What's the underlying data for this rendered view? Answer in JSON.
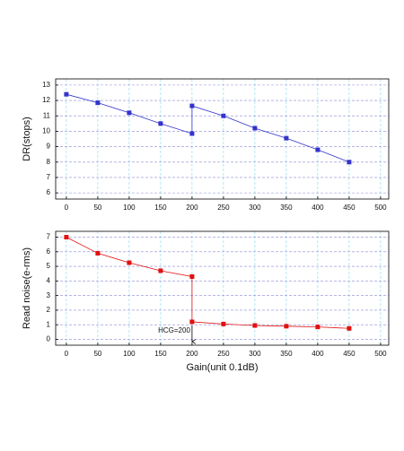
{
  "chart_data": [
    {
      "type": "line",
      "ylabel": "DR(stops)",
      "x": [
        0,
        50,
        100,
        150,
        200,
        200,
        250,
        300,
        350,
        400,
        450
      ],
      "values": [
        12.4,
        11.85,
        11.2,
        10.5,
        9.85,
        11.65,
        11.0,
        10.2,
        9.55,
        8.8,
        8.0
      ],
      "color": "#3333cc",
      "xlim": [
        -17,
        513
      ],
      "xticks": [
        0,
        50,
        100,
        150,
        200,
        250,
        300,
        350,
        400,
        450,
        500
      ],
      "ylim": [
        5.6,
        13.4
      ],
      "yticks": [
        6,
        7,
        8,
        9,
        10,
        11,
        12,
        13
      ],
      "grid": true
    },
    {
      "type": "line",
      "ylabel": "Read noise(e-rms)",
      "xlabel": "Gain(unit 0.1dB)",
      "x": [
        0,
        50,
        100,
        150,
        200,
        200,
        250,
        300,
        350,
        400,
        450
      ],
      "values": [
        7.0,
        5.9,
        5.25,
        4.7,
        4.3,
        1.2,
        1.05,
        0.95,
        0.9,
        0.85,
        0.75
      ],
      "color": "#e01010",
      "xlim": [
        -17,
        513
      ],
      "xticks": [
        0,
        50,
        100,
        150,
        200,
        250,
        300,
        350,
        400,
        450,
        500
      ],
      "ylim": [
        -0.4,
        7.4
      ],
      "yticks": [
        0,
        1,
        2,
        3,
        4,
        5,
        6,
        7
      ],
      "grid": true,
      "annotation": {
        "text": "HCG=200",
        "x": 200
      }
    }
  ]
}
